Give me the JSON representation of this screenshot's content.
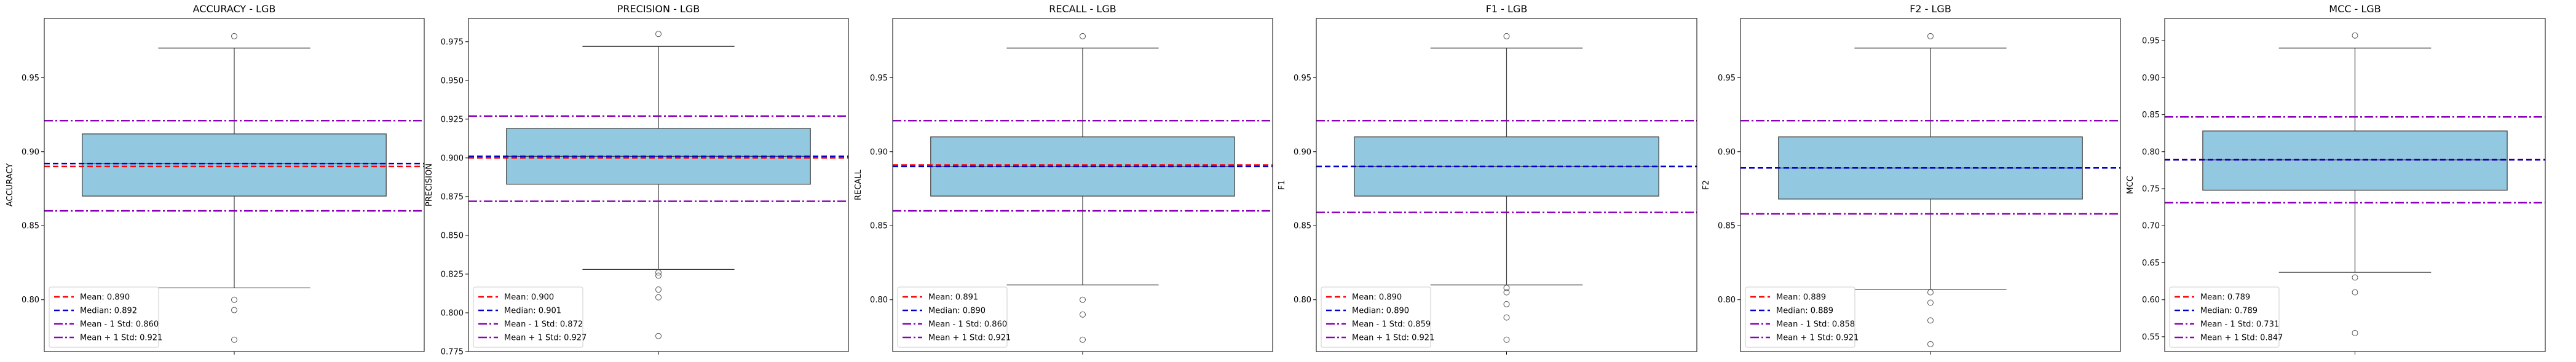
{
  "figure": {
    "background": "#ffffff",
    "colors": {
      "box_fill": "#92c8e0",
      "box_edge": "#3b3b3b",
      "mean_line": "#ff0000",
      "median_line": "#0000cd",
      "std_lines": "#8b00b8"
    }
  },
  "chart_data": [
    {
      "type": "box",
      "title": "ACCURACY - LGB",
      "ylabel": "ACCURACY",
      "xlabel": "",
      "ylim": [
        0.765,
        0.99
      ],
      "yticks": [
        0.8,
        0.85,
        0.9,
        0.95
      ],
      "ytick_labels": [
        "0.80",
        "0.85",
        "0.90",
        "0.95"
      ],
      "box": {
        "q1": 0.87,
        "median": 0.892,
        "q3": 0.912,
        "whisker_low": 0.808,
        "whisker_high": 0.97
      },
      "outliers": [
        0.978,
        0.8,
        0.793,
        0.773
      ],
      "lines": {
        "mean": 0.89,
        "median": 0.892,
        "mean_minus_std": 0.86,
        "mean_plus_std": 0.921
      },
      "legend": [
        "Mean: 0.890",
        "Median: 0.892",
        "Mean - 1 Std: 0.860",
        "Mean + 1 Std: 0.921"
      ],
      "legend_position": "lower-left"
    },
    {
      "type": "box",
      "title": "PRECISION - LGB",
      "ylabel": "PRECISION",
      "xlabel": "",
      "ylim": [
        0.775,
        0.99
      ],
      "yticks": [
        0.775,
        0.8,
        0.825,
        0.85,
        0.875,
        0.9,
        0.925,
        0.95,
        0.975
      ],
      "ytick_labels": [
        "0.775",
        "0.800",
        "0.825",
        "0.850",
        "0.875",
        "0.900",
        "0.925",
        "0.950",
        "0.975"
      ],
      "box": {
        "q1": 0.883,
        "median": 0.901,
        "q3": 0.919,
        "whisker_low": 0.828,
        "whisker_high": 0.972
      },
      "outliers": [
        0.98,
        0.826,
        0.824,
        0.815,
        0.81,
        0.785
      ],
      "lines": {
        "mean": 0.9,
        "median": 0.901,
        "mean_minus_std": 0.872,
        "mean_plus_std": 0.927
      },
      "legend": [
        "Mean: 0.900",
        "Median: 0.901",
        "Mean - 1 Std: 0.872",
        "Mean + 1 Std: 0.927"
      ],
      "legend_position": "lower-left"
    },
    {
      "type": "box",
      "title": "RECALL - LGB",
      "ylabel": "RECALL",
      "xlabel": "",
      "ylim": [
        0.765,
        0.99
      ],
      "yticks": [
        0.8,
        0.85,
        0.9,
        0.95
      ],
      "ytick_labels": [
        "0.80",
        "0.85",
        "0.90",
        "0.95"
      ],
      "box": {
        "q1": 0.87,
        "median": 0.89,
        "q3": 0.91,
        "whisker_low": 0.81,
        "whisker_high": 0.97
      },
      "outliers": [
        0.978,
        0.8,
        0.79,
        0.773
      ],
      "lines": {
        "mean": 0.891,
        "median": 0.89,
        "mean_minus_std": 0.86,
        "mean_plus_std": 0.921
      },
      "legend": [
        "Mean: 0.891",
        "Median: 0.890",
        "Mean - 1 Std: 0.860",
        "Mean + 1 Std: 0.921"
      ],
      "legend_position": "lower-left"
    },
    {
      "type": "box",
      "title": "F1 - LGB",
      "ylabel": "F1",
      "xlabel": "",
      "ylim": [
        0.765,
        0.99
      ],
      "yticks": [
        0.8,
        0.85,
        0.9,
        0.95
      ],
      "ytick_labels": [
        "0.80",
        "0.85",
        "0.90",
        "0.95"
      ],
      "box": {
        "q1": 0.87,
        "median": 0.89,
        "q3": 0.91,
        "whisker_low": 0.81,
        "whisker_high": 0.97
      },
      "outliers": [
        0.978,
        0.808,
        0.805,
        0.797,
        0.788,
        0.773
      ],
      "lines": {
        "mean": 0.89,
        "median": 0.89,
        "mean_minus_std": 0.859,
        "mean_plus_std": 0.921
      },
      "legend": [
        "Mean: 0.890",
        "Median: 0.890",
        "Mean - 1 Std: 0.859",
        "Mean + 1 Std: 0.921"
      ],
      "legend_position": "lower-left"
    },
    {
      "type": "box",
      "title": "F2 - LGB",
      "ylabel": "F2",
      "xlabel": "",
      "ylim": [
        0.765,
        0.99
      ],
      "yticks": [
        0.8,
        0.85,
        0.9,
        0.95
      ],
      "ytick_labels": [
        "0.80",
        "0.85",
        "0.90",
        "0.95"
      ],
      "box": {
        "q1": 0.868,
        "median": 0.889,
        "q3": 0.91,
        "whisker_low": 0.807,
        "whisker_high": 0.97
      },
      "outliers": [
        0.978,
        0.805,
        0.798,
        0.786,
        0.77
      ],
      "lines": {
        "mean": 0.889,
        "median": 0.889,
        "mean_minus_std": 0.858,
        "mean_plus_std": 0.921
      },
      "legend": [
        "Mean: 0.889",
        "Median: 0.889",
        "Mean - 1 Std: 0.858",
        "Mean + 1 Std: 0.921"
      ],
      "legend_position": "lower-left"
    },
    {
      "type": "box",
      "title": "MCC - LGB",
      "ylabel": "MCC",
      "xlabel": "",
      "ylim": [
        0.53,
        0.98
      ],
      "yticks": [
        0.55,
        0.6,
        0.65,
        0.7,
        0.75,
        0.8,
        0.85,
        0.9,
        0.95
      ],
      "ytick_labels": [
        "0.55",
        "0.60",
        "0.65",
        "0.70",
        "0.75",
        "0.80",
        "0.85",
        "0.90",
        "0.95"
      ],
      "box": {
        "q1": 0.748,
        "median": 0.789,
        "q3": 0.828,
        "whisker_low": 0.637,
        "whisker_high": 0.94
      },
      "outliers": [
        0.957,
        0.63,
        0.61,
        0.555
      ],
      "lines": {
        "mean": 0.789,
        "median": 0.789,
        "mean_minus_std": 0.731,
        "mean_plus_std": 0.847
      },
      "legend": [
        "Mean: 0.789",
        "Median: 0.789",
        "Mean - 1 Std: 0.731",
        "Mean + 1 Std: 0.847"
      ],
      "legend_position": "lower-left"
    }
  ]
}
